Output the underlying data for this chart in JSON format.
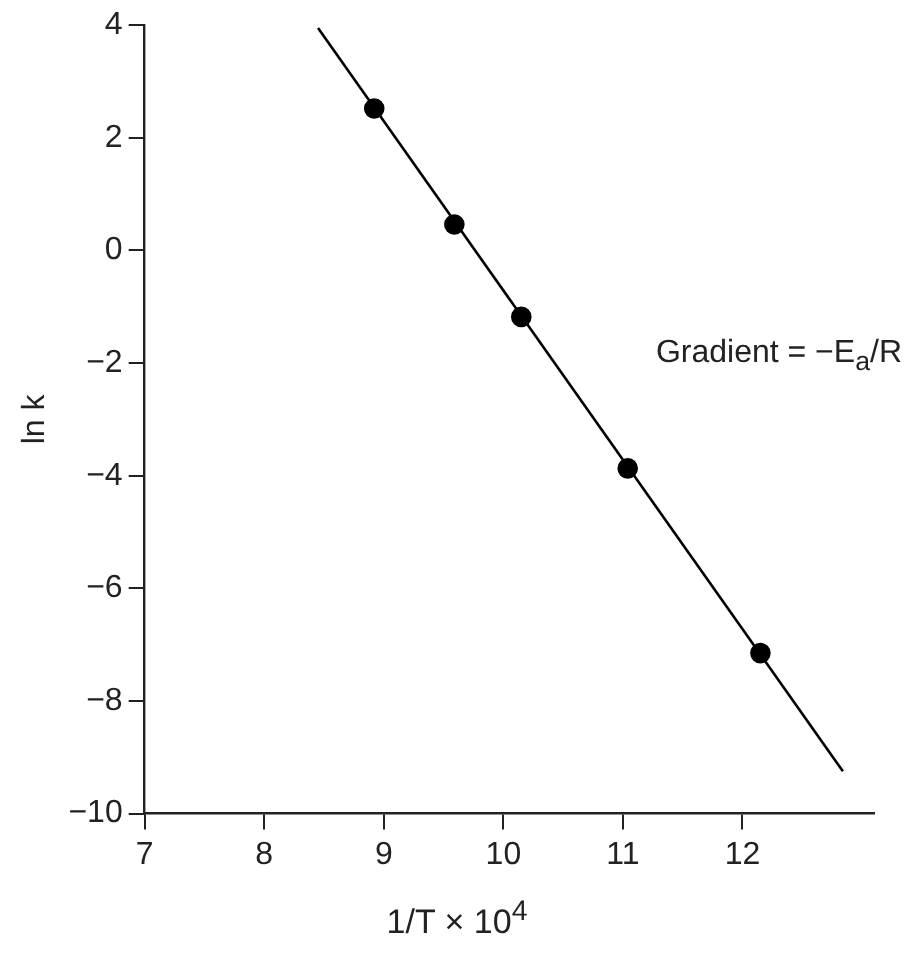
{
  "chart_data": {
    "type": "scatter",
    "xlabel": "1/T × 10$^{4}$",
    "ylabel": "ln k",
    "annotations": [
      "Gradient = −E$_{a}$/R"
    ],
    "xlim": [
      7,
      13.1
    ],
    "ylim": [
      -10,
      4
    ],
    "xticks": [
      7,
      8,
      9,
      10,
      11,
      12
    ],
    "yticks": [
      -10,
      -8,
      -6,
      -4,
      -2,
      0,
      2,
      4
    ],
    "grid": false,
    "legend": false,
    "marker": "circle",
    "series": [
      {
        "type": "scatter",
        "color": "#000000",
        "x": [
          8.92,
          9.59,
          10.15,
          11.04,
          12.15
        ],
        "values": [
          2.52,
          0.46,
          -1.18,
          -3.87,
          -7.15
        ]
      },
      {
        "type": "line",
        "color": "#000000",
        "line_style": "solid",
        "marker": "none",
        "x": [
          8.45,
          12.84
        ],
        "values": [
          3.95,
          -9.25
        ]
      }
    ]
  }
}
